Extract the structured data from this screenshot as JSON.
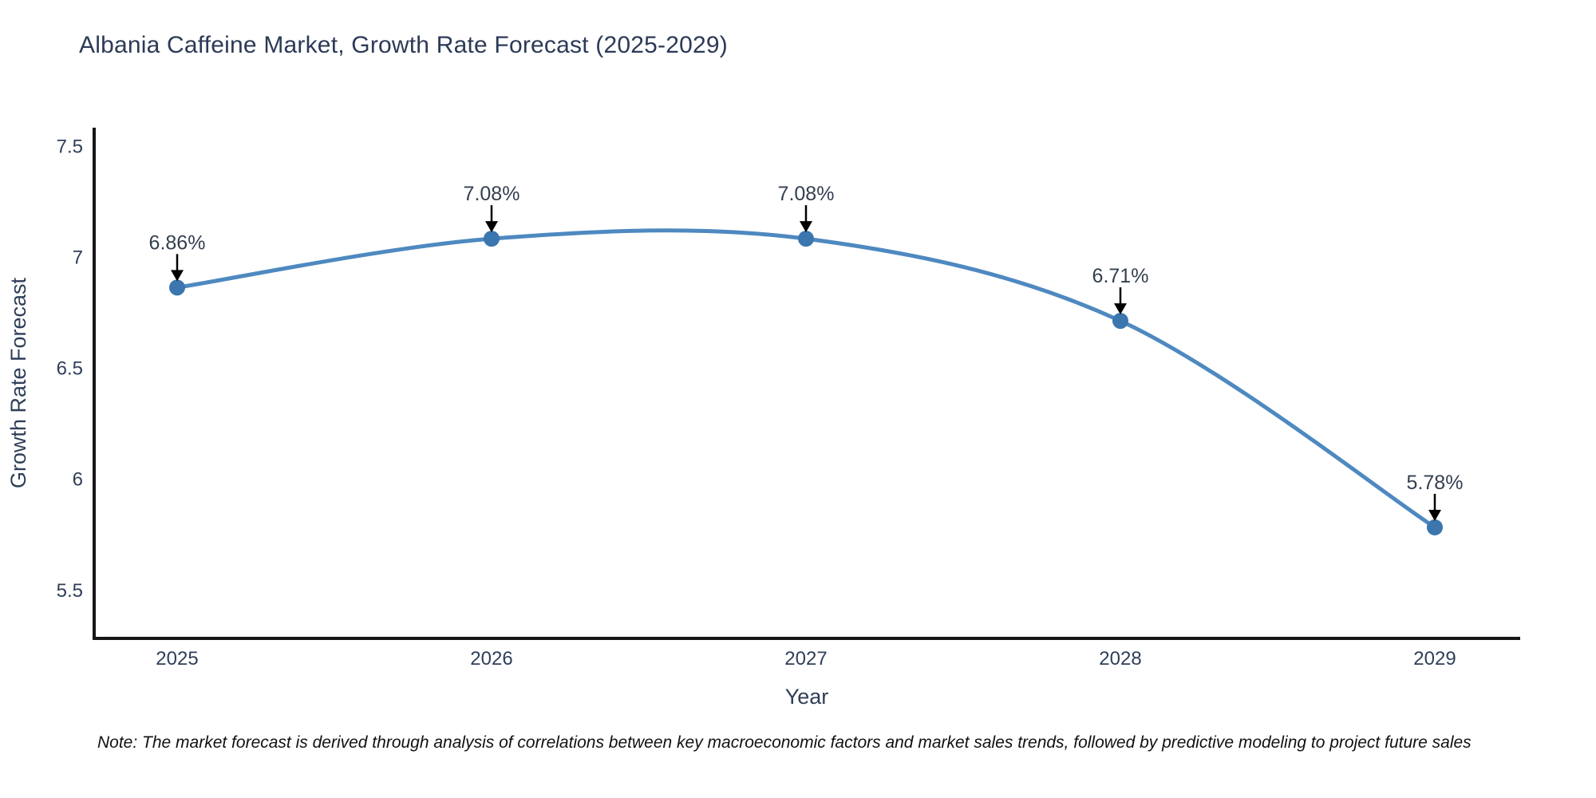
{
  "title": "Albania Caffeine Market, Growth Rate Forecast (2025-2029)",
  "note": "Note: The market forecast is derived through analysis of correlations between key macroeconomic factors and market sales trends, followed by predictive modeling to project future sales",
  "colors": {
    "line": "#4e89c0",
    "marker": "#3b76ae",
    "axis": "#161616",
    "tick_text": "#2f3f58",
    "annotation_text": "#333f50",
    "arrow": "#000000",
    "title_text": "#2c3a57"
  },
  "chart_data": {
    "type": "line",
    "title": "Albania Caffeine Market, Growth Rate Forecast (2025-2029)",
    "xlabel": "Year",
    "ylabel": "Growth Rate Forecast",
    "x": [
      2025,
      2026,
      2027,
      2028,
      2029
    ],
    "series": [
      {
        "name": "Growth Rate Forecast",
        "values": [
          6.86,
          7.08,
          7.08,
          6.71,
          5.78
        ]
      }
    ],
    "point_labels": [
      "6.86%",
      "7.08%",
      "7.08%",
      "6.71%",
      "5.78%"
    ],
    "yticks": [
      5.5,
      6,
      6.5,
      7,
      7.5
    ],
    "ytick_labels": [
      "5.5",
      "6",
      "6.5",
      "7",
      "7.5"
    ],
    "ylim": [
      5.28,
      7.58
    ],
    "grid": false,
    "legend": false,
    "line_shape": "spline",
    "marker": "circle",
    "annotation_style": "arrow-down-to-point"
  }
}
